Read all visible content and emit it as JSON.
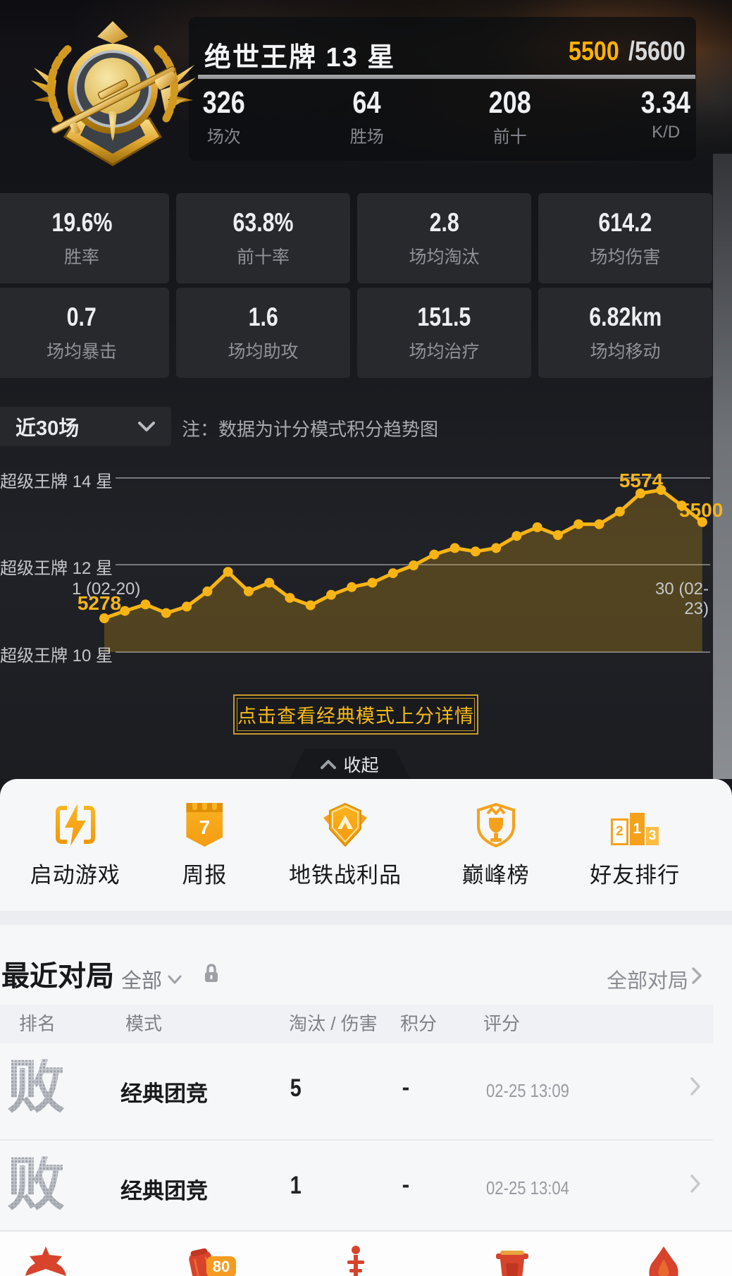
{
  "colors": {
    "accent_gold": "#f8b414",
    "score_gold": "#ffb201",
    "tab_red": "#d8432c",
    "badge_orange": "#f59b22"
  },
  "header": {
    "rank_title": "绝世王牌 13 星",
    "score_current": "5500",
    "score_rest": "/5600",
    "stats": [
      {
        "value": "326",
        "label": "场次"
      },
      {
        "value": "64",
        "label": "胜场"
      },
      {
        "value": "208",
        "label": "前十"
      },
      {
        "value": "3.34",
        "label": "K/D"
      }
    ]
  },
  "stat_cards": [
    {
      "value": "19.6%",
      "label": "胜率"
    },
    {
      "value": "63.8%",
      "label": "前十率"
    },
    {
      "value": "2.8",
      "label": "场均淘汰"
    },
    {
      "value": "614.2",
      "label": "场均伤害"
    },
    {
      "value": "0.7",
      "label": "场均暴击"
    },
    {
      "value": "1.6",
      "label": "场均助攻"
    },
    {
      "value": "151.5",
      "label": "场均治疗"
    },
    {
      "value": "6.82km",
      "label": "场均移动"
    }
  ],
  "trend": {
    "range_selector": "近30场",
    "note": "注：数据为计分模式积分趋势图",
    "detail_button": "点击查看经典模式上分详情",
    "collapse_label": "收起"
  },
  "chart_data": {
    "type": "line",
    "title": "计分模式积分趋势图",
    "x": [
      1,
      2,
      3,
      4,
      5,
      6,
      7,
      8,
      9,
      10,
      11,
      12,
      13,
      14,
      15,
      16,
      17,
      18,
      19,
      20,
      21,
      22,
      23,
      24,
      25,
      26,
      27,
      28,
      29,
      30
    ],
    "values": [
      5278,
      5295,
      5310,
      5290,
      5305,
      5340,
      5385,
      5340,
      5360,
      5325,
      5308,
      5332,
      5350,
      5360,
      5382,
      5400,
      5425,
      5440,
      5432,
      5440,
      5468,
      5488,
      5470,
      5495,
      5495,
      5524,
      5566,
      5574,
      5538,
      5500
    ],
    "ylim": [
      5150,
      5650
    ],
    "grid": true,
    "y_gridlines": [
      {
        "label": "超级王牌 14 星",
        "value": 5600
      },
      {
        "label": "超级王牌 12 星",
        "value": 5400
      },
      {
        "label": "超级王牌 10 星",
        "value": 5200
      }
    ],
    "x_first_label": "1 (02-20)",
    "x_last_label": "30 (02-23)",
    "annotations": [
      {
        "index": 0,
        "text": "5278"
      },
      {
        "index": 27,
        "text": "5574"
      },
      {
        "index": 29,
        "text": "5500"
      }
    ],
    "line_color": "#f8b414",
    "fill_color": "rgba(248,180,20,0.24)"
  },
  "quick_links": [
    {
      "label": "启动游戏",
      "icon": "launch-game-icon"
    },
    {
      "label": "周报",
      "icon": "weekly-report-icon",
      "badge": "7"
    },
    {
      "label": "地铁战利品",
      "icon": "metro-loot-icon"
    },
    {
      "label": "巅峰榜",
      "icon": "peak-rank-icon"
    },
    {
      "label": "好友排行",
      "icon": "friends-rank-icon",
      "podium": {
        "second": "2",
        "first": "1",
        "third": "3"
      }
    }
  ],
  "recent": {
    "title": "最近对局",
    "filter_label": "全部",
    "all_link": "全部对局",
    "columns": [
      "排名",
      "模式",
      "淘汰 / 伤害",
      "积分",
      "评分"
    ],
    "rows": [
      {
        "result": "败",
        "mode": "经典团竞",
        "kills": "5",
        "score": "-",
        "time": "02-25 13:09"
      },
      {
        "result": "败",
        "mode": "经典团竞",
        "kills": "1",
        "score": "-",
        "time": "02-25 13:04"
      }
    ]
  },
  "tabbar": {
    "badge_label": "80"
  }
}
